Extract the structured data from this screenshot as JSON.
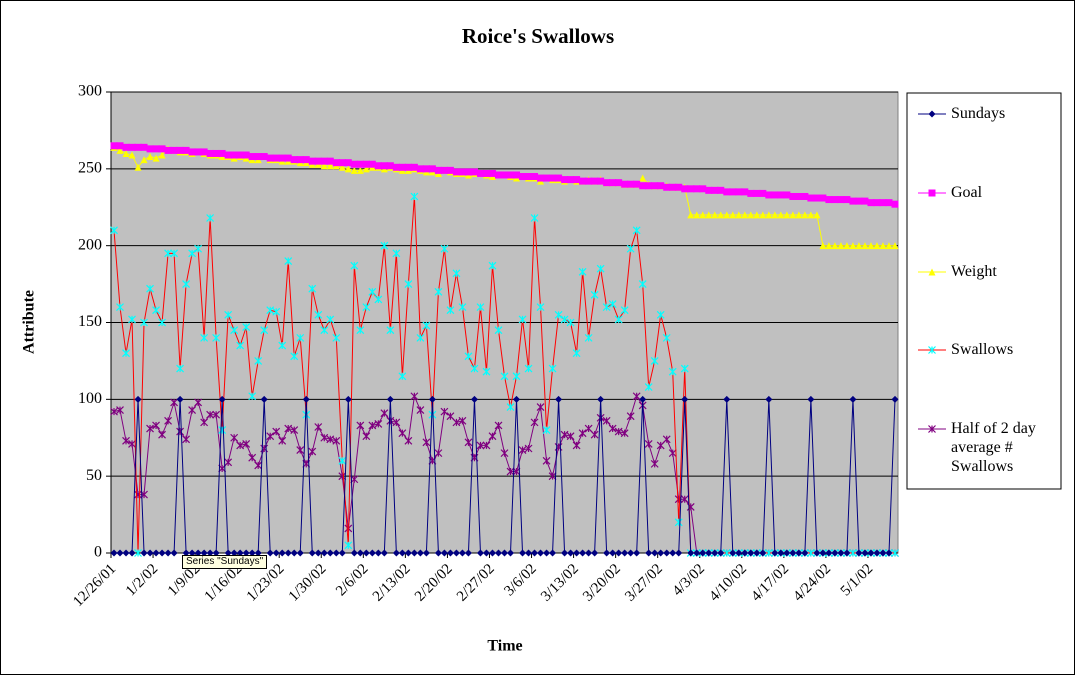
{
  "chart_data": {
    "type": "line",
    "title": "Roice's Swallows",
    "xlabel": "Time",
    "ylabel": "Attribute",
    "tooltip": "Series \"Sundays\"",
    "categories": [
      "12/26/01",
      null,
      null,
      null,
      null,
      null,
      null,
      "1/2/02",
      null,
      null,
      null,
      null,
      null,
      null,
      "1/9/02",
      null,
      null,
      null,
      null,
      null,
      null,
      "1/16/02",
      null,
      null,
      null,
      null,
      null,
      null,
      "1/23/02",
      null,
      null,
      null,
      null,
      null,
      null,
      "1/30/02",
      null,
      null,
      null,
      null,
      null,
      null,
      "2/6/02",
      null,
      null,
      null,
      null,
      null,
      null,
      "2/13/02",
      null,
      null,
      null,
      null,
      null,
      null,
      "2/20/02",
      null,
      null,
      null,
      null,
      null,
      null,
      "2/27/02",
      null,
      null,
      null,
      null,
      null,
      null,
      "3/6/02",
      null,
      null,
      null,
      null,
      null,
      null,
      "3/13/02",
      null,
      null,
      null,
      null,
      null,
      null,
      "3/20/02",
      null,
      null,
      null,
      null,
      null,
      null,
      "3/27/02",
      null,
      null,
      null,
      null,
      null,
      null,
      "4/3/02",
      null,
      null,
      null,
      null,
      null,
      null,
      "4/10/02",
      null,
      null,
      null,
      null,
      null,
      null,
      "4/17/02",
      null,
      null,
      null,
      null,
      null,
      null,
      "4/24/02",
      null,
      null,
      null,
      null,
      null,
      null,
      "5/1/02",
      null,
      null,
      null,
      null
    ],
    "ylim": [
      0,
      300
    ],
    "yticks": [
      0,
      50,
      100,
      150,
      200,
      250,
      300
    ],
    "grid": true,
    "legend": "right",
    "series": [
      {
        "name": "Sundays",
        "color": "#000080",
        "marker": "diamond",
        "marker_color": "#000080",
        "values": [
          0,
          0,
          0,
          0,
          100,
          0,
          0,
          0,
          0,
          0,
          0,
          100,
          0,
          0,
          0,
          0,
          0,
          0,
          100,
          0,
          0,
          0,
          0,
          0,
          0,
          100,
          0,
          0,
          0,
          0,
          0,
          0,
          100,
          0,
          0,
          0,
          0,
          0,
          0,
          100,
          0,
          0,
          0,
          0,
          0,
          0,
          100,
          0,
          0,
          0,
          0,
          0,
          0,
          100,
          0,
          0,
          0,
          0,
          0,
          0,
          100,
          0,
          0,
          0,
          0,
          0,
          0,
          100,
          0,
          0,
          0,
          0,
          0,
          0,
          100,
          0,
          0,
          0,
          0,
          0,
          0,
          100,
          0,
          0,
          0,
          0,
          0,
          0,
          100,
          0,
          0,
          0,
          0,
          0,
          0,
          100,
          0,
          0,
          0,
          0,
          0,
          0,
          100,
          0,
          0,
          0,
          0,
          0,
          0,
          100,
          0,
          0,
          0,
          0,
          0,
          0,
          100,
          0,
          0,
          0,
          0,
          0,
          0,
          100,
          0,
          0,
          0,
          0,
          0,
          0,
          100
        ]
      },
      {
        "name": "Goal",
        "color": "#ff00ff",
        "marker": "square",
        "marker_color": "#ff00ff",
        "values": [
          265,
          265,
          264,
          264,
          264,
          264,
          263,
          263,
          263,
          262,
          262,
          262,
          262,
          261,
          261,
          261,
          260,
          260,
          260,
          259,
          259,
          259,
          259,
          258,
          258,
          258,
          257,
          257,
          257,
          257,
          256,
          256,
          256,
          255,
          255,
          255,
          255,
          254,
          254,
          254,
          253,
          253,
          253,
          253,
          252,
          252,
          252,
          251,
          251,
          251,
          251,
          250,
          250,
          250,
          249,
          249,
          249,
          248,
          248,
          248,
          248,
          247,
          247,
          247,
          246,
          246,
          246,
          246,
          245,
          245,
          245,
          244,
          244,
          244,
          244,
          243,
          243,
          243,
          242,
          242,
          242,
          242,
          241,
          241,
          241,
          240,
          240,
          240,
          239,
          239,
          239,
          239,
          238,
          238,
          238,
          237,
          237,
          237,
          237,
          236,
          236,
          236,
          235,
          235,
          235,
          235,
          234,
          234,
          234,
          233,
          233,
          233,
          233,
          232,
          232,
          232,
          231,
          231,
          231,
          230,
          230,
          230,
          230,
          229,
          229,
          229,
          228,
          228,
          228,
          228,
          227
        ]
      },
      {
        "name": "Weight",
        "color": "#ffff00",
        "marker": "triangle",
        "marker_color": "#ffff00",
        "values": [
          264,
          262,
          260,
          259,
          251,
          256,
          258,
          257,
          259,
          263,
          262,
          261,
          261,
          260,
          261,
          260,
          259,
          259,
          258,
          258,
          257,
          258,
          257,
          256,
          256,
          258,
          256,
          256,
          255,
          255,
          255,
          254,
          254,
          253,
          253,
          252,
          252,
          252,
          251,
          250,
          249,
          249,
          250,
          251,
          251,
          250,
          251,
          250,
          249,
          249,
          250,
          249,
          248,
          248,
          247,
          249,
          248,
          247,
          247,
          246,
          247,
          247,
          246,
          245,
          246,
          246,
          245,
          244,
          245,
          244,
          244,
          242,
          244,
          243,
          243,
          242,
          243,
          242,
          242,
          243,
          242,
          243,
          241,
          241,
          241,
          240,
          240,
          240,
          244,
          240,
          239,
          239,
          239,
          238,
          238,
          238,
          220,
          220,
          220,
          220,
          220,
          220,
          220,
          220,
          220,
          220,
          220,
          220,
          220,
          220,
          220,
          220,
          220,
          220,
          220,
          220,
          220,
          220,
          200,
          200,
          200,
          200,
          200,
          200,
          200,
          200,
          200,
          200,
          200,
          200,
          200
        ]
      },
      {
        "name": "Swallows",
        "color": "#ff0000",
        "marker": "star",
        "marker_color": "#00ffff",
        "values": [
          210,
          160,
          130,
          152,
          0,
          150,
          172,
          158,
          150,
          195,
          195,
          120,
          175,
          195,
          198,
          140,
          218,
          140,
          80,
          155,
          145,
          135,
          147,
          102,
          125,
          145,
          158,
          157,
          135,
          190,
          128,
          140,
          90,
          172,
          155,
          145,
          152,
          140,
          60,
          5,
          187,
          145,
          160,
          170,
          165,
          200,
          145,
          195,
          115,
          175,
          232,
          140,
          148,
          90,
          170,
          198,
          158,
          182,
          160,
          128,
          120,
          160,
          118,
          187,
          145,
          115,
          95,
          115,
          152,
          120,
          218,
          160,
          80,
          120,
          155,
          152,
          150,
          130,
          183,
          140,
          168,
          185,
          160,
          162,
          152,
          158,
          198,
          210,
          175,
          108,
          125,
          155,
          140,
          118,
          20,
          120,
          0,
          0,
          0,
          0,
          0,
          0,
          0,
          0,
          0,
          0,
          0,
          0,
          0,
          0,
          0,
          0,
          0,
          0,
          0,
          0,
          0,
          0,
          0,
          0,
          0,
          0,
          0,
          0,
          0,
          0,
          0,
          0,
          0,
          0,
          0
        ]
      },
      {
        "name": "Half of 2 day average # Swallows",
        "color": "#800080",
        "marker": "star",
        "marker_color": "#800080",
        "values": [
          92,
          93,
          73,
          71,
          38,
          38,
          81,
          83,
          77,
          86,
          98,
          79,
          74,
          93,
          98,
          85,
          90,
          90,
          55,
          59,
          75,
          70,
          71,
          62,
          57,
          68,
          76,
          79,
          73,
          81,
          80,
          67,
          58,
          66,
          82,
          75,
          74,
          73,
          50,
          16,
          48,
          83,
          76,
          83,
          84,
          91,
          86,
          85,
          78,
          73,
          102,
          93,
          72,
          60,
          65,
          92,
          89,
          85,
          86,
          72,
          62,
          70,
          70,
          76,
          83,
          65,
          53,
          53,
          67,
          68,
          85,
          95,
          60,
          50,
          69,
          77,
          76,
          70,
          78,
          81,
          77,
          88,
          86,
          81,
          79,
          78,
          89,
          102,
          96,
          71,
          58,
          70,
          74,
          65,
          35,
          35,
          30,
          0,
          0,
          0,
          0,
          0,
          0,
          0,
          0,
          0,
          0,
          0,
          0,
          0,
          0,
          0,
          0,
          0,
          0,
          0,
          0,
          0,
          0,
          0,
          0,
          0,
          0,
          0,
          0,
          0,
          0,
          0,
          0,
          0,
          0
        ]
      }
    ]
  }
}
